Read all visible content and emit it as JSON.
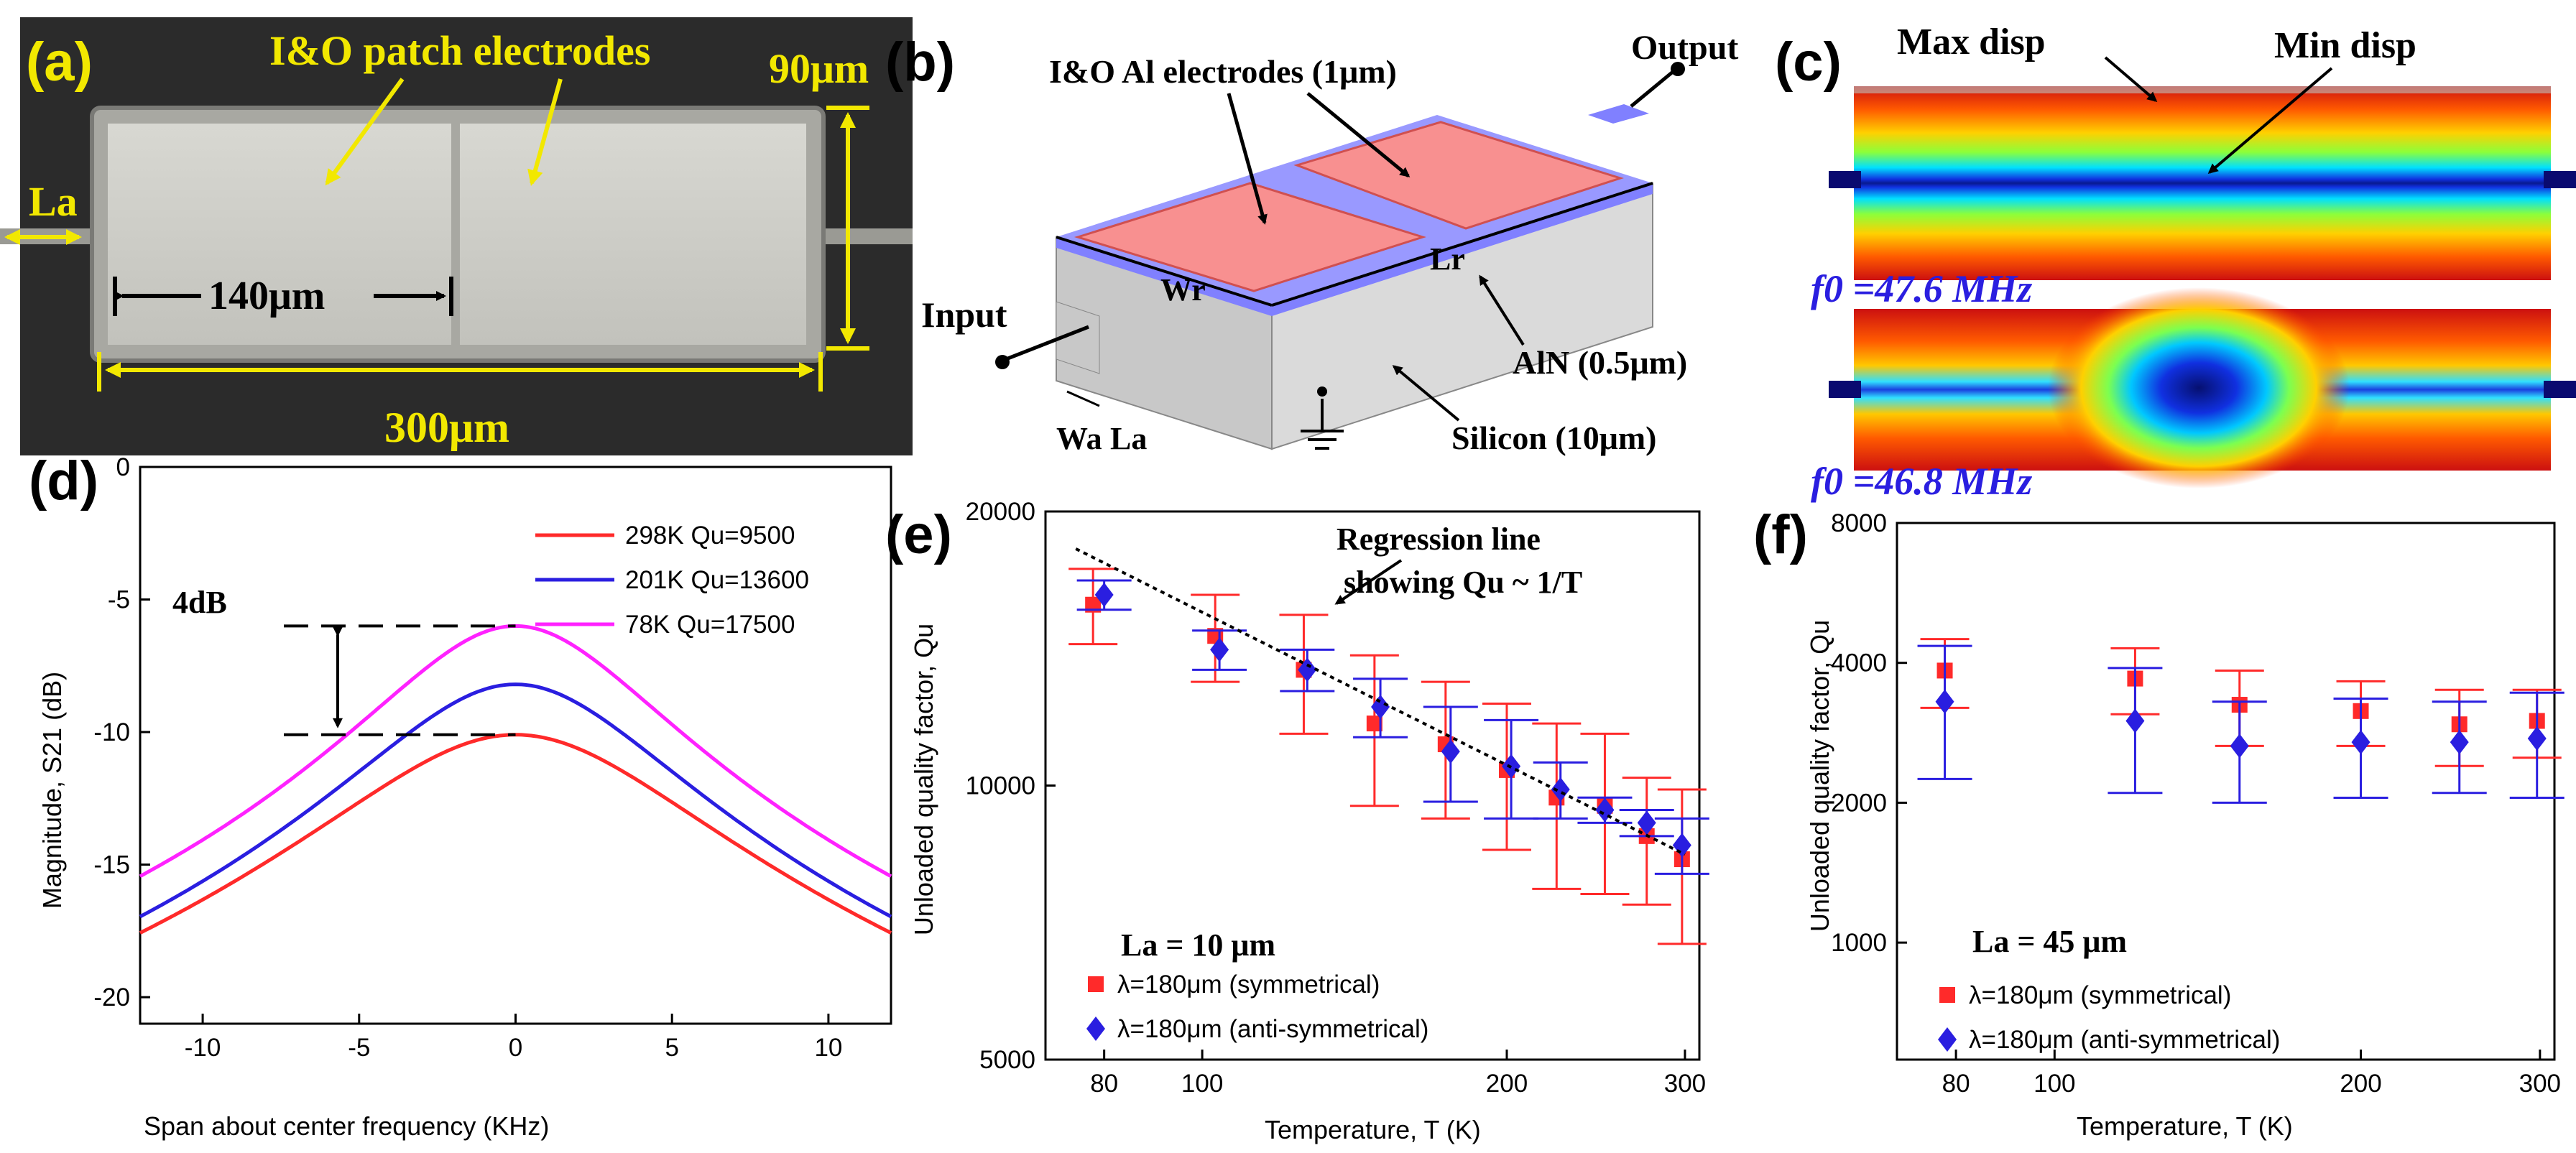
{
  "panel_labels": {
    "a": "(a)",
    "b": "(b)",
    "c": "(c)",
    "d": "(d)",
    "e": "(e)",
    "f": "(f)"
  },
  "panel_a": {
    "title": "I&O patch electrodes",
    "height_label": "90μm",
    "width_label": "300μm",
    "half_label": "140μm",
    "la_label": "La"
  },
  "panel_b": {
    "electrodes_label": "I&O Al electrodes (1μm)",
    "output_label": "Output",
    "input_label": "Input",
    "wr_label": "Wr",
    "lr_label": "Lr",
    "aln_label": "AlN (0.5μm)",
    "silicon_label": "Silicon (10μm)",
    "wa_label": "Wa",
    "la_label": "La"
  },
  "panel_c": {
    "max_label": "Max disp",
    "min_label": "Min disp",
    "f0_top": "f0 =47.6 MHz",
    "f0_bottom": "f0 =46.8 MHz"
  },
  "colors": {
    "red": "#ff2a2a",
    "blue": "#2a1ee0",
    "magenta": "#ff22ff",
    "dark": "#000000"
  },
  "chart_data": [
    {
      "type": "line",
      "panel": "d",
      "xlabel": "Span about center frequency (KHz)",
      "ylabel": "Magnitude, S21 (dB)",
      "xlim": [
        -12,
        12
      ],
      "ylim": [
        -21,
        0
      ],
      "xticks": [
        "-10",
        "-5",
        "0",
        "5",
        "10"
      ],
      "yticks": [
        "0",
        "-5",
        "-10",
        "-15",
        "-20"
      ],
      "annotation": "4dB",
      "series": [
        {
          "name": "298K Qu=9500",
          "peak": -10.1,
          "halfwidth": 5.6,
          "color": "#ff2a2a"
        },
        {
          "name": "201K Qu=13600",
          "peak": -8.2,
          "halfwidth": 4.7,
          "color": "#2a1ee0"
        },
        {
          "name": "78K  Qu=17500",
          "peak": -6.0,
          "halfwidth": 4.3,
          "color": "#ff22ff"
        }
      ]
    },
    {
      "type": "scatter",
      "panel": "e",
      "xlabel": "Temperature, T (K)",
      "ylabel": "Unloaded quality factor, Qu",
      "xscale": "log",
      "yscale": "log",
      "xlim": [
        70,
        310
      ],
      "ylim": [
        5000,
        20000
      ],
      "xticks": [
        "80",
        "100",
        "200",
        "300"
      ],
      "yticks": [
        "5000",
        "10000",
        "20000"
      ],
      "annotation": "La = 10 μm",
      "regression_label_1": "Regression line",
      "regression_label_2": "showing Qu ~ 1/T",
      "series": [
        {
          "name": "λ=180μm (symmetrical)",
          "color": "#ff2a2a",
          "marker": "square",
          "x": [
            78,
            103,
            126,
            148,
            174,
            200,
            224,
            250,
            275,
            298
          ],
          "y": [
            15800,
            14600,
            13400,
            11700,
            11100,
            10400,
            9700,
            9500,
            8800,
            8300
          ],
          "err": [
            1500,
            1600,
            2000,
            2200,
            1900,
            1900,
            2000,
            1900,
            1400,
            1600
          ]
        },
        {
          "name": "λ=180μm (anti-symmetrical)",
          "color": "#2a1ee0",
          "marker": "diamond",
          "x": [
            80,
            104,
            127,
            150,
            176,
            202,
            226,
            250,
            275,
            298
          ],
          "y": [
            16200,
            14100,
            13400,
            12200,
            10900,
            10500,
            9900,
            9400,
            9100,
            8600
          ],
          "err": [
            600,
            700,
            700,
            900,
            1300,
            1300,
            700,
            300,
            300,
            600
          ]
        }
      ]
    },
    {
      "type": "scatter",
      "panel": "f",
      "xlabel": "Temperature, T (K)",
      "ylabel": "Unloaded quality factor, Qu",
      "xscale": "log",
      "yscale": "log",
      "xlim": [
        70,
        310
      ],
      "ylim": [
        560,
        8000
      ],
      "xticks": [
        "80",
        "100",
        "200",
        "300"
      ],
      "yticks": [
        "1000",
        "2000",
        "4000",
        "8000"
      ],
      "annotation": "La = 45 μm",
      "series": [
        {
          "name": "λ=180μm (symmetrical)",
          "color": "#ff2a2a",
          "marker": "square",
          "x": [
            78,
            120,
            152,
            200,
            250,
            298
          ],
          "y": [
            3850,
            3700,
            3250,
            3150,
            2950,
            3000
          ],
          "err": [
            650,
            600,
            600,
            500,
            550,
            500
          ]
        },
        {
          "name": "λ=180μm (anti-symmetrical)",
          "color": "#2a1ee0",
          "marker": "diamond",
          "x": [
            78,
            120,
            152,
            200,
            250,
            298
          ],
          "y": [
            3300,
            3000,
            2650,
            2700,
            2700,
            2750
          ],
          "err": [
            1050,
            900,
            650,
            650,
            600,
            700
          ]
        }
      ]
    }
  ]
}
